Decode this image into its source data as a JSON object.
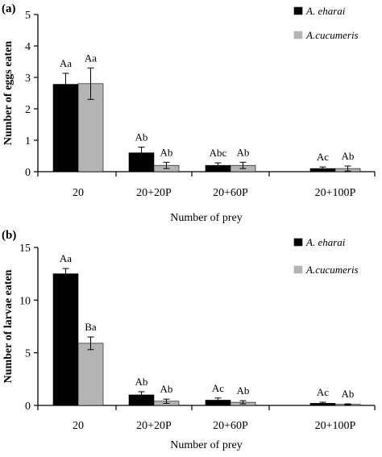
{
  "chart_data": [
    {
      "panel_label": "(a)",
      "type": "bar",
      "categories": [
        "20",
        "20+20P",
        "20+60P",
        "20+100P"
      ],
      "ylabel": "Number of eggs eaten",
      "xlabel": "Number of prey",
      "ylim": [
        0,
        5
      ],
      "yticks": [
        "0",
        "1",
        "2",
        "3",
        "4",
        "5"
      ],
      "legend_position": "top-right",
      "series": [
        {
          "name": "A. eharai",
          "color": "#000000",
          "values": [
            2.78,
            0.6,
            0.2,
            0.1
          ],
          "errors": [
            0.35,
            0.18,
            0.08,
            0.05
          ],
          "labels": [
            "Aa",
            "Ab",
            "Abc",
            "Ac"
          ]
        },
        {
          "name": "A.cucumeris",
          "color": "#b4b4b4",
          "values": [
            2.8,
            0.2,
            0.2,
            0.1
          ],
          "errors": [
            0.5,
            0.1,
            0.1,
            0.08
          ],
          "labels": [
            "Aa",
            "Ab",
            "Ab",
            "Ab"
          ]
        }
      ]
    },
    {
      "panel_label": "(b)",
      "type": "bar",
      "categories": [
        "20",
        "20+20P",
        "20+60P",
        "20+100P"
      ],
      "ylabel": "Number of larvae eaten",
      "xlabel": "Number of prey",
      "ylim": [
        0,
        15
      ],
      "yticks": [
        "0",
        "5",
        "10",
        "15"
      ],
      "legend_position": "top-right",
      "series": [
        {
          "name": "A. eharai",
          "color": "#000000",
          "values": [
            12.5,
            1.0,
            0.5,
            0.2
          ],
          "errors": [
            0.5,
            0.3,
            0.2,
            0.1
          ],
          "labels": [
            "Aa",
            "Ab",
            "Ac",
            "Ac"
          ]
        },
        {
          "name": "A.cucumeris",
          "color": "#b4b4b4",
          "values": [
            5.9,
            0.4,
            0.3,
            0.1
          ],
          "errors": [
            0.6,
            0.2,
            0.15,
            0.05
          ],
          "labels": [
            "Ba",
            "Ab",
            "Ab",
            "Ab"
          ]
        }
      ]
    }
  ]
}
